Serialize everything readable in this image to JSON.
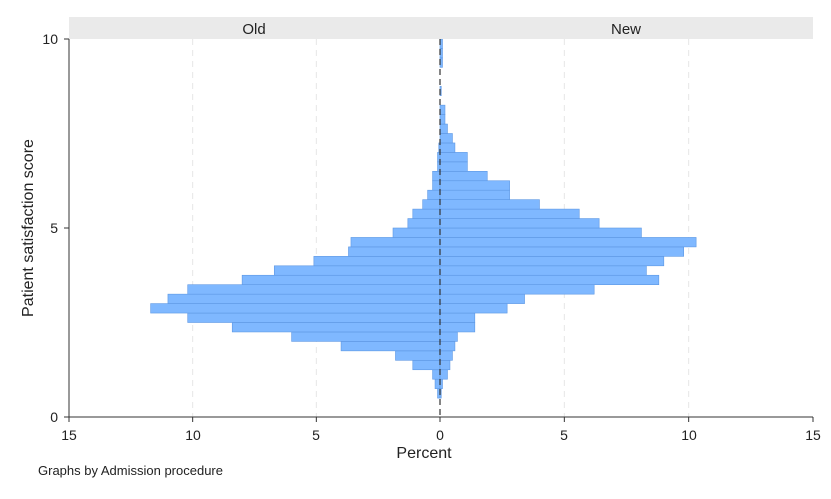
{
  "chart_data": {
    "type": "bar",
    "orientation": "horizontal-mirrored",
    "title": "",
    "xlabel": "Percent",
    "ylabel": "Patient satisfaction score",
    "note": "Graphs by Admission procedure",
    "xlim": [
      0,
      15
    ],
    "ylim": [
      0,
      10
    ],
    "x_ticks": [
      "15",
      "10",
      "5",
      "0",
      "5",
      "10",
      "15"
    ],
    "y_ticks": [
      "0",
      "5",
      "10"
    ],
    "bin_width": 0.25,
    "grid": true,
    "bar_color": "#7fb8ff",
    "bar_edge_color": "#5d97e3",
    "zero_line_color": "#333333",
    "header_color": "#eaeaea",
    "panels": [
      {
        "name": "Old",
        "side": "left",
        "bins": [
          {
            "y0": 0.5,
            "v": 0.1
          },
          {
            "y0": 0.75,
            "v": 0.2
          },
          {
            "y0": 1.0,
            "v": 0.3
          },
          {
            "y0": 1.25,
            "v": 1.1
          },
          {
            "y0": 1.5,
            "v": 1.8
          },
          {
            "y0": 1.75,
            "v": 4.0
          },
          {
            "y0": 2.0,
            "v": 6.0
          },
          {
            "y0": 2.25,
            "v": 8.4
          },
          {
            "y0": 2.5,
            "v": 10.2
          },
          {
            "y0": 2.75,
            "v": 11.7
          },
          {
            "y0": 3.0,
            "v": 11.0
          },
          {
            "y0": 3.25,
            "v": 10.2
          },
          {
            "y0": 3.5,
            "v": 8.0
          },
          {
            "y0": 3.75,
            "v": 6.7
          },
          {
            "y0": 4.0,
            "v": 5.1
          },
          {
            "y0": 4.25,
            "v": 3.7
          },
          {
            "y0": 4.5,
            "v": 3.6
          },
          {
            "y0": 4.75,
            "v": 1.9
          },
          {
            "y0": 5.0,
            "v": 1.3
          },
          {
            "y0": 5.25,
            "v": 1.1
          },
          {
            "y0": 5.5,
            "v": 0.7
          },
          {
            "y0": 5.75,
            "v": 0.5
          },
          {
            "y0": 6.0,
            "v": 0.3
          },
          {
            "y0": 6.25,
            "v": 0.3
          },
          {
            "y0": 6.5,
            "v": 0.1
          },
          {
            "y0": 6.75,
            "v": 0.1
          },
          {
            "y0": 7.0,
            "v": 0.05
          }
        ]
      },
      {
        "name": "New",
        "side": "right",
        "bins": [
          {
            "y0": 0.5,
            "v": 0.05
          },
          {
            "y0": 0.75,
            "v": 0.1
          },
          {
            "y0": 1.0,
            "v": 0.3
          },
          {
            "y0": 1.25,
            "v": 0.4
          },
          {
            "y0": 1.5,
            "v": 0.5
          },
          {
            "y0": 1.75,
            "v": 0.6
          },
          {
            "y0": 2.0,
            "v": 0.7
          },
          {
            "y0": 2.25,
            "v": 1.4
          },
          {
            "y0": 2.5,
            "v": 1.4
          },
          {
            "y0": 2.75,
            "v": 2.7
          },
          {
            "y0": 3.0,
            "v": 3.4
          },
          {
            "y0": 3.25,
            "v": 6.2
          },
          {
            "y0": 3.5,
            "v": 8.8
          },
          {
            "y0": 3.75,
            "v": 8.3
          },
          {
            "y0": 4.0,
            "v": 9.0
          },
          {
            "y0": 4.25,
            "v": 9.8
          },
          {
            "y0": 4.5,
            "v": 10.3
          },
          {
            "y0": 4.75,
            "v": 8.1
          },
          {
            "y0": 5.0,
            "v": 6.4
          },
          {
            "y0": 5.25,
            "v": 5.6
          },
          {
            "y0": 5.5,
            "v": 4.0
          },
          {
            "y0": 5.75,
            "v": 2.8
          },
          {
            "y0": 6.0,
            "v": 2.8
          },
          {
            "y0": 6.25,
            "v": 1.9
          },
          {
            "y0": 6.5,
            "v": 1.1
          },
          {
            "y0": 6.75,
            "v": 1.1
          },
          {
            "y0": 7.0,
            "v": 0.6
          },
          {
            "y0": 7.25,
            "v": 0.5
          },
          {
            "y0": 7.5,
            "v": 0.3
          },
          {
            "y0": 7.75,
            "v": 0.2
          },
          {
            "y0": 8.0,
            "v": 0.2
          },
          {
            "y0": 8.5,
            "v": 0.05
          },
          {
            "y0": 9.25,
            "v": 0.1
          },
          {
            "y0": 9.5,
            "v": 0.1
          },
          {
            "y0": 9.75,
            "v": 0.1
          }
        ]
      }
    ]
  }
}
